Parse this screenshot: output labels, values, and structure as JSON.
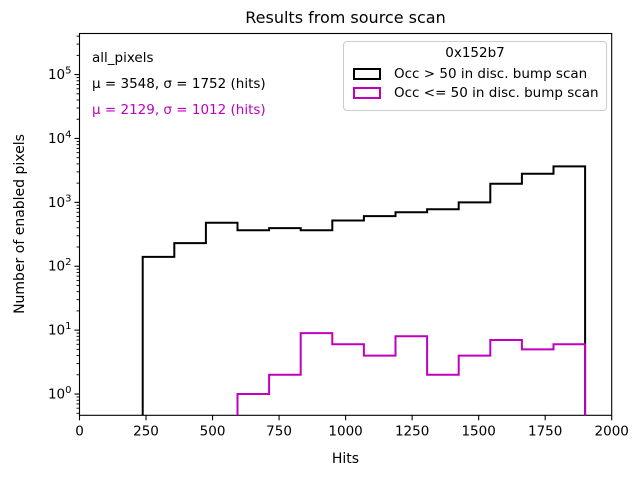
{
  "chart_data": {
    "type": "histogram",
    "title": "Results from source scan",
    "xlabel": "Hits",
    "ylabel": "Number of enabled pixels",
    "xscale": "linear",
    "yscale": "log",
    "xlim": [
      0,
      2000
    ],
    "ylim_log10": [
      -0.333,
      5.643
    ],
    "x_ticks": [
      0,
      250,
      500,
      750,
      1000,
      1250,
      1500,
      1750,
      2000
    ],
    "y_tick_exponents": [
      0,
      1,
      2,
      3,
      4,
      5
    ],
    "grid": false,
    "bin_width_hits": 118.75,
    "legend": {
      "title": "0x152b7",
      "position": "upper right"
    },
    "series": [
      {
        "name": "Occ > 50 in disc. bump scan",
        "color": "#000000",
        "first_bin_edge": 237.5,
        "values": [
          140,
          230,
          480,
          365,
          395,
          365,
          520,
          610,
          700,
          780,
          1000,
          1950,
          2800,
          3650
        ]
      },
      {
        "name": "Occ <= 50 in disc. bump scan",
        "color": "#bf00bf",
        "first_bin_edge": 593.75,
        "values": [
          1,
          2,
          9,
          6,
          4,
          8,
          2,
          4,
          7,
          5,
          6
        ]
      }
    ],
    "annotations": [
      {
        "text": "all_pixels",
        "color": "#000000"
      },
      {
        "text": "μ = 3548, σ = 1752 (hits)",
        "color": "#000000"
      },
      {
        "text": "μ = 2129, σ = 1012 (hits)",
        "color": "#bf00bf"
      }
    ]
  }
}
